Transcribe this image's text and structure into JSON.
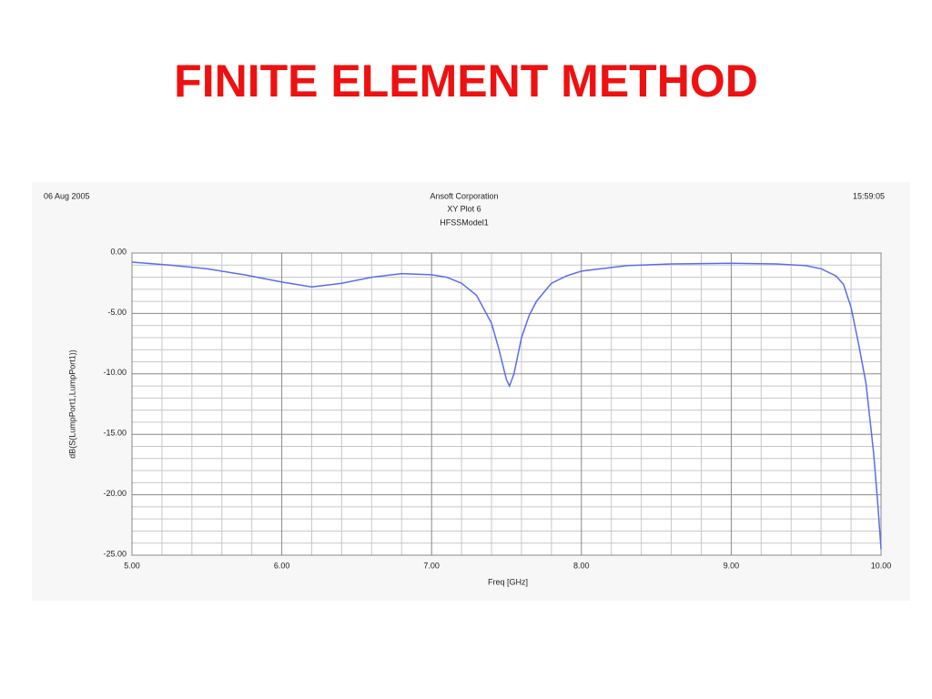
{
  "slide_title": "FINITE ELEMENT METHOD",
  "chart_data": {
    "type": "line",
    "header": {
      "date": "06 Aug 2005",
      "company": "Ansoft Corporation",
      "plot_name": "XY Plot 6",
      "model": "HFSSModel1",
      "time": "15:59:05"
    },
    "x_label": "Freq [GHz]",
    "y_label": "dB(S(LumpPort1,LumpPort1))",
    "xlim": [
      5,
      10
    ],
    "ylim": [
      -25,
      0
    ],
    "xticks": [
      {
        "value": 5,
        "label": "5.00"
      },
      {
        "value": 6,
        "label": "6.00"
      },
      {
        "value": 7,
        "label": "7.00"
      },
      {
        "value": 8,
        "label": "8.00"
      },
      {
        "value": 9,
        "label": "9.00"
      },
      {
        "value": 10,
        "label": "10.00"
      }
    ],
    "yticks": [
      {
        "value": 0,
        "label": "0.00"
      },
      {
        "value": -5,
        "label": "-5.00"
      },
      {
        "value": -10,
        "label": "-10.00"
      },
      {
        "value": -15,
        "label": "-15.00"
      },
      {
        "value": -20,
        "label": "-20.00"
      },
      {
        "value": -25,
        "label": "-25.00"
      }
    ],
    "x_minor_ticks": [
      5.2,
      5.4,
      5.6,
      5.8,
      6.2,
      6.4,
      6.6,
      6.8,
      7.2,
      7.4,
      7.6,
      7.8,
      8.2,
      8.4,
      8.6,
      8.8,
      9.2,
      9.4,
      9.6,
      9.8
    ],
    "y_minor_ticks": [
      -1,
      -2,
      -3,
      -4,
      -6,
      -7,
      -8,
      -9,
      -11,
      -12,
      -13,
      -14,
      -16,
      -17,
      -18,
      -19,
      -21,
      -22,
      -23,
      -24
    ],
    "grid": true,
    "series": [
      {
        "color": "#5a6cf0",
        "x": [
          5.0,
          5.25,
          5.5,
          5.75,
          6.0,
          6.2,
          6.4,
          6.6,
          6.8,
          7.0,
          7.1,
          7.2,
          7.3,
          7.4,
          7.45,
          7.5,
          7.52,
          7.55,
          7.6,
          7.65,
          7.7,
          7.8,
          7.9,
          8.0,
          8.3,
          8.6,
          9.0,
          9.3,
          9.5,
          9.6,
          9.7,
          9.75,
          9.8,
          9.85,
          9.9,
          9.95,
          9.98,
          10.0
        ],
        "values": [
          -0.75,
          -1.0,
          -1.3,
          -1.8,
          -2.4,
          -2.8,
          -2.5,
          -2.0,
          -1.7,
          -1.8,
          -2.0,
          -2.5,
          -3.5,
          -5.8,
          -8.0,
          -10.5,
          -11.0,
          -10.0,
          -7.0,
          -5.2,
          -4.0,
          -2.5,
          -1.9,
          -1.5,
          -1.05,
          -0.9,
          -0.85,
          -0.9,
          -1.05,
          -1.3,
          -1.9,
          -2.6,
          -4.5,
          -7.5,
          -10.8,
          -16.5,
          -21.0,
          -24.5
        ]
      }
    ]
  }
}
